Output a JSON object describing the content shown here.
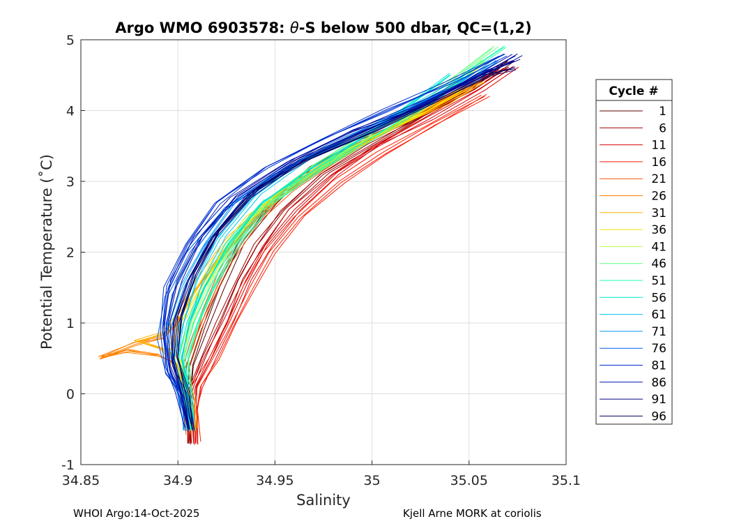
{
  "chart_data": {
    "type": "line",
    "title_pre": "Argo WMO 6903578: ",
    "title_theta": "θ",
    "title_post": "-S below 500 dbar,  QC=(1,2)",
    "xlabel": "Salinity",
    "ylabel": "Potential Temperature (˚C)",
    "xlim": [
      34.85,
      35.1
    ],
    "ylim": [
      -1,
      5
    ],
    "x_ticks": [
      "34.85",
      "34.9",
      "34.95",
      "35",
      "35.05",
      "35.1"
    ],
    "y_ticks": [
      "-1",
      "0",
      "1",
      "2",
      "3",
      "4",
      "5"
    ],
    "grid": true,
    "legend_title": "Cycle #",
    "legend_position": "right",
    "series": [
      {
        "name": "1",
        "color": "#5a0000",
        "points": [
          [
            34.906,
            -0.7
          ],
          [
            34.905,
            -0.3
          ],
          [
            34.905,
            0.0
          ],
          [
            34.906,
            0.4
          ],
          [
            34.912,
            0.9
          ],
          [
            34.921,
            1.5
          ],
          [
            34.932,
            2.1
          ],
          [
            34.948,
            2.7
          ],
          [
            34.968,
            3.2
          ],
          [
            34.995,
            3.6
          ],
          [
            35.02,
            3.9
          ],
          [
            35.05,
            4.3
          ],
          [
            35.07,
            4.7
          ]
        ]
      },
      {
        "name": "6",
        "color": "#a00000",
        "points": [
          [
            34.907,
            -0.7
          ],
          [
            34.906,
            -0.2
          ],
          [
            34.908,
            0.1
          ],
          [
            34.914,
            0.5
          ],
          [
            34.922,
            1.0
          ],
          [
            34.931,
            1.6
          ],
          [
            34.941,
            2.1
          ],
          [
            34.955,
            2.6
          ],
          [
            34.975,
            3.1
          ],
          [
            35.0,
            3.5
          ],
          [
            35.025,
            3.9
          ],
          [
            35.05,
            4.3
          ],
          [
            35.068,
            4.6
          ]
        ]
      },
      {
        "name": "11",
        "color": "#d80000",
        "points": [
          [
            34.908,
            -0.7
          ],
          [
            34.907,
            -0.2
          ],
          [
            34.909,
            0.1
          ],
          [
            34.916,
            0.5
          ],
          [
            34.925,
            1.0
          ],
          [
            34.935,
            1.6
          ],
          [
            34.945,
            2.1
          ],
          [
            34.96,
            2.6
          ],
          [
            34.98,
            3.1
          ],
          [
            35.002,
            3.5
          ],
          [
            35.028,
            3.9
          ],
          [
            35.055,
            4.3
          ],
          [
            35.072,
            4.6
          ]
        ]
      },
      {
        "name": "16",
        "color": "#ff1a00",
        "points": [
          [
            34.909,
            -0.7
          ],
          [
            34.908,
            -0.2
          ],
          [
            34.91,
            0.1
          ],
          [
            34.918,
            0.5
          ],
          [
            34.928,
            1.0
          ],
          [
            34.937,
            1.5
          ],
          [
            34.947,
            2.0
          ],
          [
            34.962,
            2.5
          ],
          [
            34.983,
            3.0
          ],
          [
            35.005,
            3.4
          ],
          [
            35.03,
            3.8
          ],
          [
            35.058,
            4.2
          ]
        ]
      },
      {
        "name": "21",
        "color": "#ff5000",
        "points": [
          [
            34.907,
            -0.6
          ],
          [
            34.906,
            -0.1
          ],
          [
            34.903,
            0.3
          ],
          [
            34.908,
            0.7
          ],
          [
            34.915,
            1.2
          ],
          [
            34.925,
            1.8
          ],
          [
            34.94,
            2.4
          ],
          [
            34.958,
            2.9
          ],
          [
            34.985,
            3.4
          ],
          [
            35.012,
            3.8
          ],
          [
            35.04,
            4.2
          ],
          [
            35.06,
            4.5
          ]
        ]
      },
      {
        "name": "26",
        "color": "#ff8000",
        "points": [
          [
            34.907,
            -0.5
          ],
          [
            34.905,
            0.0
          ],
          [
            34.9,
            0.4
          ],
          [
            34.89,
            0.55
          ],
          [
            34.875,
            0.6
          ],
          [
            34.86,
            0.5
          ],
          [
            34.878,
            0.7
          ],
          [
            34.893,
            0.8
          ],
          [
            34.9,
            1.0
          ],
          [
            34.91,
            1.5
          ],
          [
            34.925,
            2.0
          ],
          [
            34.945,
            2.6
          ],
          [
            34.97,
            3.1
          ],
          [
            35.0,
            3.6
          ],
          [
            35.03,
            4.0
          ],
          [
            35.055,
            4.4
          ]
        ]
      },
      {
        "name": "31",
        "color": "#ffb000",
        "points": [
          [
            34.907,
            -0.5
          ],
          [
            34.905,
            0.0
          ],
          [
            34.898,
            0.5
          ],
          [
            34.892,
            0.65
          ],
          [
            34.88,
            0.75
          ],
          [
            34.893,
            0.85
          ],
          [
            34.901,
            1.1
          ],
          [
            34.912,
            1.6
          ],
          [
            34.928,
            2.2
          ],
          [
            34.95,
            2.8
          ],
          [
            34.978,
            3.3
          ],
          [
            35.008,
            3.7
          ],
          [
            35.038,
            4.1
          ],
          [
            35.058,
            4.4
          ]
        ]
      },
      {
        "name": "36",
        "color": "#ffe000",
        "points": [
          [
            34.907,
            -0.5
          ],
          [
            34.905,
            0.0
          ],
          [
            34.9,
            0.4
          ],
          [
            34.895,
            0.6
          ],
          [
            34.898,
            0.9
          ],
          [
            34.906,
            1.3
          ],
          [
            34.918,
            1.9
          ],
          [
            34.935,
            2.5
          ],
          [
            34.96,
            3.0
          ],
          [
            34.99,
            3.5
          ],
          [
            35.02,
            3.9
          ],
          [
            35.045,
            4.3
          ]
        ]
      },
      {
        "name": "41",
        "color": "#b0ff40",
        "points": [
          [
            34.907,
            -0.5
          ],
          [
            34.905,
            0.0
          ],
          [
            34.902,
            0.5
          ],
          [
            34.905,
            0.9
          ],
          [
            34.912,
            1.4
          ],
          [
            34.922,
            1.9
          ],
          [
            34.938,
            2.5
          ],
          [
            34.962,
            3.0
          ],
          [
            34.99,
            3.5
          ],
          [
            35.018,
            3.9
          ],
          [
            35.04,
            4.3
          ],
          [
            35.058,
            4.7
          ]
        ]
      },
      {
        "name": "46",
        "color": "#60ff80",
        "points": [
          [
            34.907,
            -0.5
          ],
          [
            34.905,
            0.0
          ],
          [
            34.903,
            0.5
          ],
          [
            34.908,
            1.0
          ],
          [
            34.916,
            1.5
          ],
          [
            34.928,
            2.1
          ],
          [
            34.945,
            2.7
          ],
          [
            34.972,
            3.2
          ],
          [
            35.0,
            3.7
          ],
          [
            35.03,
            4.2
          ],
          [
            35.05,
            4.6
          ],
          [
            35.065,
            4.9
          ]
        ]
      },
      {
        "name": "51",
        "color": "#20ffb0",
        "points": [
          [
            34.907,
            -0.5
          ],
          [
            34.905,
            0.0
          ],
          [
            34.904,
            0.5
          ],
          [
            34.91,
            1.0
          ],
          [
            34.918,
            1.5
          ],
          [
            34.93,
            2.1
          ],
          [
            34.948,
            2.7
          ],
          [
            34.975,
            3.2
          ],
          [
            35.005,
            3.7
          ],
          [
            35.035,
            4.2
          ],
          [
            35.052,
            4.6
          ],
          [
            35.068,
            4.9
          ]
        ]
      },
      {
        "name": "56",
        "color": "#00e8d0",
        "points": [
          [
            34.907,
            -0.5
          ],
          [
            34.905,
            0.0
          ],
          [
            34.902,
            0.5
          ],
          [
            34.906,
            1.0
          ],
          [
            34.914,
            1.5
          ],
          [
            34.926,
            2.1
          ],
          [
            34.944,
            2.7
          ],
          [
            34.97,
            3.2
          ],
          [
            35.0,
            3.7
          ],
          [
            35.02,
            4.1
          ],
          [
            35.04,
            4.5
          ]
        ]
      },
      {
        "name": "61",
        "color": "#00c8f0",
        "points": [
          [
            34.906,
            -0.5
          ],
          [
            34.904,
            0.0
          ],
          [
            34.9,
            0.5
          ],
          [
            34.903,
            1.0
          ],
          [
            34.91,
            1.6
          ],
          [
            34.922,
            2.2
          ],
          [
            34.94,
            2.8
          ],
          [
            34.965,
            3.3
          ],
          [
            34.995,
            3.7
          ],
          [
            35.025,
            4.1
          ],
          [
            35.05,
            4.5
          ]
        ]
      },
      {
        "name": "71",
        "color": "#0098f0",
        "points": [
          [
            34.906,
            -0.5
          ],
          [
            34.903,
            0.0
          ],
          [
            34.898,
            0.4
          ],
          [
            34.896,
            0.9
          ],
          [
            34.903,
            1.5
          ],
          [
            34.915,
            2.1
          ],
          [
            34.932,
            2.7
          ],
          [
            34.958,
            3.2
          ],
          [
            34.99,
            3.6
          ],
          [
            35.02,
            4.0
          ],
          [
            35.048,
            4.4
          ],
          [
            35.065,
            4.7
          ]
        ]
      },
      {
        "name": "76",
        "color": "#0060e8",
        "points": [
          [
            34.906,
            -0.5
          ],
          [
            34.902,
            0.0
          ],
          [
            34.896,
            0.3
          ],
          [
            34.893,
            0.8
          ],
          [
            34.897,
            1.4
          ],
          [
            34.908,
            2.0
          ],
          [
            34.925,
            2.6
          ],
          [
            34.95,
            3.1
          ],
          [
            34.98,
            3.5
          ],
          [
            35.012,
            3.9
          ],
          [
            35.04,
            4.3
          ],
          [
            35.062,
            4.6
          ]
        ]
      },
      {
        "name": "81",
        "color": "#0030d0",
        "points": [
          [
            34.906,
            -0.5
          ],
          [
            34.902,
            0.0
          ],
          [
            34.895,
            0.3
          ],
          [
            34.892,
            0.9
          ],
          [
            34.895,
            1.5
          ],
          [
            34.905,
            2.1
          ],
          [
            34.92,
            2.7
          ],
          [
            34.945,
            3.2
          ],
          [
            34.975,
            3.6
          ],
          [
            35.008,
            4.0
          ],
          [
            35.04,
            4.4
          ],
          [
            35.068,
            4.8
          ]
        ]
      },
      {
        "name": "86",
        "color": "#0010a8",
        "points": [
          [
            34.906,
            -0.5
          ],
          [
            34.902,
            0.0
          ],
          [
            34.896,
            0.4
          ],
          [
            34.895,
            1.0
          ],
          [
            34.9,
            1.6
          ],
          [
            34.912,
            2.2
          ],
          [
            34.93,
            2.8
          ],
          [
            34.958,
            3.3
          ],
          [
            34.99,
            3.7
          ],
          [
            35.02,
            4.0
          ],
          [
            35.05,
            4.4
          ],
          [
            35.075,
            4.8
          ]
        ]
      },
      {
        "name": "91",
        "color": "#000088",
        "points": [
          [
            34.906,
            -0.5
          ],
          [
            34.902,
            0.0
          ],
          [
            34.897,
            0.5
          ],
          [
            34.898,
            1.0
          ],
          [
            34.905,
            1.6
          ],
          [
            34.918,
            2.2
          ],
          [
            34.936,
            2.8
          ],
          [
            34.962,
            3.3
          ],
          [
            34.995,
            3.7
          ],
          [
            35.028,
            4.1
          ],
          [
            35.055,
            4.5
          ],
          [
            35.073,
            4.7
          ]
        ]
      },
      {
        "name": "96",
        "color": "#000066",
        "points": [
          [
            34.906,
            -0.5
          ],
          [
            34.903,
            0.0
          ],
          [
            34.898,
            0.5
          ],
          [
            34.9,
            1.1
          ],
          [
            34.908,
            1.7
          ],
          [
            34.92,
            2.3
          ],
          [
            34.94,
            2.9
          ],
          [
            34.966,
            3.3
          ],
          [
            35.0,
            3.7
          ],
          [
            35.03,
            4.1
          ],
          [
            35.058,
            4.5
          ],
          [
            35.072,
            4.6
          ]
        ]
      }
    ]
  },
  "footer": {
    "left": "WHOI Argo:14-Oct-2025",
    "right": "Kjell Arne MORK at coriolis"
  }
}
